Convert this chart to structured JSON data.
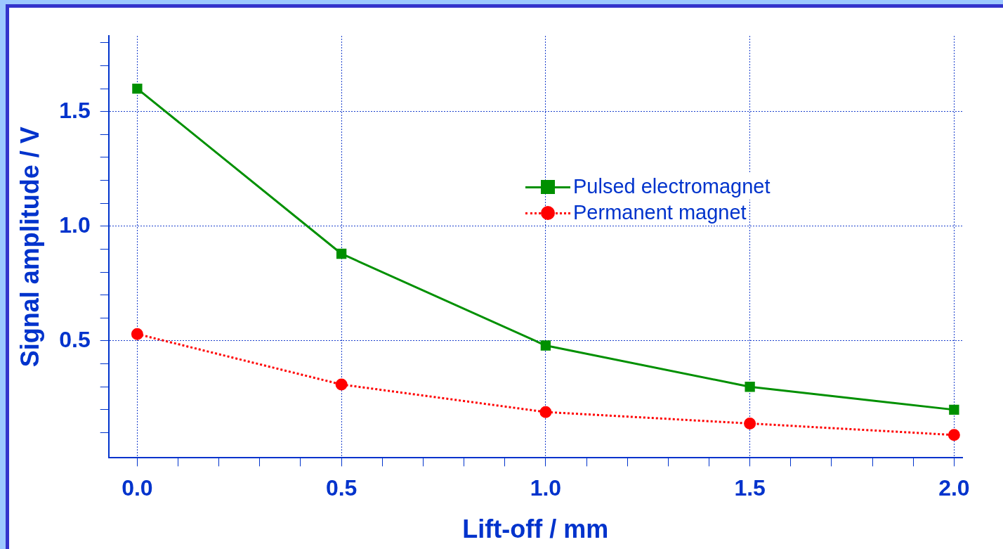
{
  "chart_data": {
    "type": "line",
    "xlabel": "Lift-off / mm",
    "ylabel": "Signal amplitude / V",
    "x": [
      0,
      0.5,
      1,
      1.5,
      2
    ],
    "series": [
      {
        "name": "Pulsed electromagnet",
        "color": "#009000",
        "marker": "square",
        "line_style": "solid",
        "values": [
          1.6,
          0.88,
          0.48,
          0.3,
          0.2
        ]
      },
      {
        "name": "Permanent magnet",
        "color": "#ff0000",
        "marker": "circle",
        "line_style": "dotted",
        "values": [
          0.53,
          0.31,
          0.19,
          0.14,
          0.09
        ]
      }
    ],
    "xlim": [
      -0.07,
      2.02
    ],
    "xticks": [
      {
        "value": 0,
        "label": "0.0"
      },
      {
        "value": 0.1,
        "label": null
      },
      {
        "value": 0.2,
        "label": null
      },
      {
        "value": 0.3,
        "label": null
      },
      {
        "value": 0.4,
        "label": null
      },
      {
        "value": 0.5,
        "label": "0.5"
      },
      {
        "value": 0.6,
        "label": null
      },
      {
        "value": 0.7,
        "label": null
      },
      {
        "value": 0.8,
        "label": null
      },
      {
        "value": 0.9,
        "label": null
      },
      {
        "value": 1,
        "label": "1.0"
      },
      {
        "value": 1.1,
        "label": null
      },
      {
        "value": 1.2,
        "label": null
      },
      {
        "value": 1.3,
        "label": null
      },
      {
        "value": 1.4,
        "label": null
      },
      {
        "value": 1.5,
        "label": "1.5"
      },
      {
        "value": 1.6,
        "label": null
      },
      {
        "value": 1.7,
        "label": null
      },
      {
        "value": 1.8,
        "label": null
      },
      {
        "value": 1.9,
        "label": null
      },
      {
        "value": 2,
        "label": "2.0"
      }
    ],
    "ylim": [
      -0.01,
      1.83
    ],
    "yticks": [
      {
        "value": 0.1,
        "label": null
      },
      {
        "value": 0.2,
        "label": null
      },
      {
        "value": 0.3,
        "label": null
      },
      {
        "value": 0.4,
        "label": null
      },
      {
        "value": 0.5,
        "label": "0.5"
      },
      {
        "value": 0.6,
        "label": null
      },
      {
        "value": 0.7,
        "label": null
      },
      {
        "value": 0.8,
        "label": null
      },
      {
        "value": 0.9,
        "label": null
      },
      {
        "value": 1,
        "label": "1.0"
      },
      {
        "value": 1.1,
        "label": null
      },
      {
        "value": 1.2,
        "label": null
      },
      {
        "value": 1.3,
        "label": null
      },
      {
        "value": 1.4,
        "label": null
      },
      {
        "value": 1.5,
        "label": "1.5"
      },
      {
        "value": 1.6,
        "label": null
      },
      {
        "value": 1.7,
        "label": null
      },
      {
        "value": 1.8,
        "label": null
      }
    ],
    "grid": true,
    "legend": "top"
  }
}
